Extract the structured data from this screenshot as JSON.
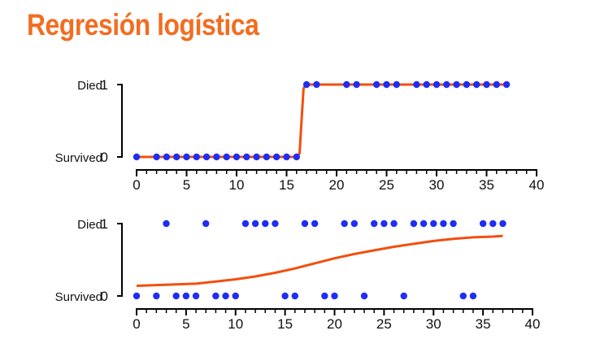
{
  "title": "Regresión logística",
  "colors": {
    "title": "#f26d21",
    "points": "#1f2ef2",
    "curve": "#f24f0f",
    "axis": "#000000"
  },
  "chart_data": [
    {
      "type": "scatter",
      "title": "",
      "xlabel": "",
      "ylabel": "",
      "xlim": [
        0,
        40
      ],
      "ylim": [
        0,
        1
      ],
      "xticks": [
        "0",
        "5",
        "10",
        "15",
        "20",
        "25",
        "30",
        "35",
        "40"
      ],
      "yticks": [
        {
          "label": "Survived",
          "tick": "0"
        },
        {
          "label": "Died",
          "tick": "1"
        }
      ],
      "grid": false,
      "series": [
        {
          "type": "scatter",
          "points": [
            [
              0,
              0
            ],
            [
              2,
              0
            ],
            [
              3,
              0
            ],
            [
              4,
              0
            ],
            [
              5,
              0
            ],
            [
              6,
              0
            ],
            [
              7,
              0
            ],
            [
              8,
              0
            ],
            [
              9,
              0
            ],
            [
              10,
              0
            ],
            [
              11,
              0
            ],
            [
              12,
              0
            ],
            [
              13,
              0
            ],
            [
              14,
              0
            ],
            [
              15,
              0
            ],
            [
              16,
              0
            ],
            [
              17,
              1
            ],
            [
              18,
              1
            ],
            [
              21,
              1
            ],
            [
              22,
              1
            ],
            [
              24,
              1
            ],
            [
              25,
              1
            ],
            [
              26,
              1
            ],
            [
              28,
              1
            ],
            [
              29,
              1
            ],
            [
              30,
              1
            ],
            [
              31,
              1
            ],
            [
              32,
              1
            ],
            [
              33,
              1
            ],
            [
              34,
              1
            ],
            [
              35,
              1
            ],
            [
              36,
              1
            ],
            [
              37,
              1
            ]
          ]
        },
        {
          "type": "line",
          "points": [
            [
              0,
              0
            ],
            [
              16,
              0
            ],
            [
              16.3,
              0.05
            ],
            [
              16.5,
              0.5
            ],
            [
              16.7,
              0.95
            ],
            [
              17,
              1
            ],
            [
              37,
              1
            ]
          ]
        }
      ]
    },
    {
      "type": "scatter",
      "title": "",
      "xlabel": "",
      "ylabel": "",
      "xlim": [
        0,
        40
      ],
      "ylim": [
        0,
        1
      ],
      "xticks": [
        "0",
        "5",
        "10",
        "15",
        "20",
        "25",
        "30",
        "35",
        "40"
      ],
      "yticks": [
        {
          "label": "Survived",
          "tick": "0"
        },
        {
          "label": "Died",
          "tick": "1"
        }
      ],
      "grid": false,
      "series": [
        {
          "type": "scatter",
          "points": [
            [
              0,
              0
            ],
            [
              2,
              0
            ],
            [
              4,
              0
            ],
            [
              5,
              0
            ],
            [
              6,
              0
            ],
            [
              8,
              0
            ],
            [
              9,
              0
            ],
            [
              10,
              0
            ],
            [
              15,
              0
            ],
            [
              16,
              0
            ],
            [
              19,
              0
            ],
            [
              20,
              0
            ],
            [
              23,
              0
            ],
            [
              27,
              0
            ],
            [
              33,
              0
            ],
            [
              34,
              0
            ],
            [
              3,
              1
            ],
            [
              7,
              1
            ],
            [
              11,
              1
            ],
            [
              12,
              1
            ],
            [
              13,
              1
            ],
            [
              14,
              1
            ],
            [
              17,
              1
            ],
            [
              18,
              1
            ],
            [
              21,
              1
            ],
            [
              22,
              1
            ],
            [
              24,
              1
            ],
            [
              25,
              1
            ],
            [
              26,
              1
            ],
            [
              28,
              1
            ],
            [
              29,
              1
            ],
            [
              30,
              1
            ],
            [
              31,
              1
            ],
            [
              32,
              1
            ],
            [
              35,
              1
            ],
            [
              36,
              1
            ],
            [
              37,
              1
            ]
          ]
        },
        {
          "type": "line",
          "points": [
            [
              0,
              0.14
            ],
            [
              2,
              0.15
            ],
            [
              4,
              0.16
            ],
            [
              6,
              0.17
            ],
            [
              8,
              0.2
            ],
            [
              10,
              0.23
            ],
            [
              12,
              0.27
            ],
            [
              14,
              0.32
            ],
            [
              16,
              0.38
            ],
            [
              18,
              0.45
            ],
            [
              20,
              0.52
            ],
            [
              22,
              0.58
            ],
            [
              24,
              0.63
            ],
            [
              26,
              0.68
            ],
            [
              28,
              0.72
            ],
            [
              30,
              0.76
            ],
            [
              32,
              0.79
            ],
            [
              34,
              0.81
            ],
            [
              36,
              0.82
            ],
            [
              37,
              0.83
            ]
          ]
        }
      ]
    }
  ]
}
